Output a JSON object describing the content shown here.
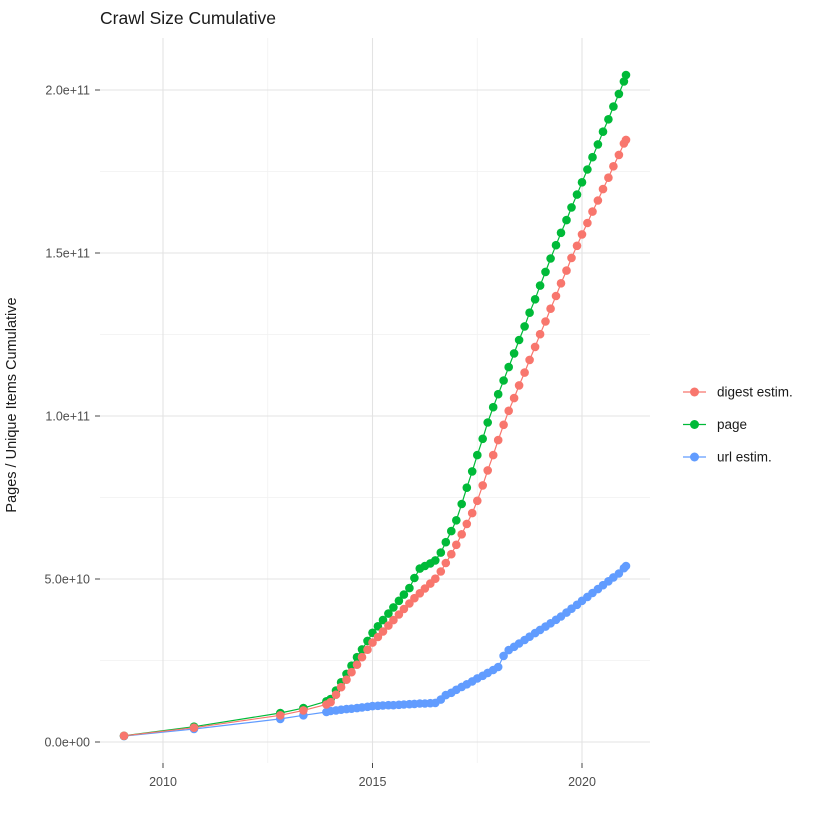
{
  "figure": {
    "title": "Crawl Size Cumulative",
    "ylabel": "Pages / Unique Items Cumulative"
  },
  "colors": {
    "background": "#FFFFFF",
    "grid_major": "#E3E3E3",
    "grid_minor": "#F0F0F0",
    "axis_text": "#4D4D4D",
    "title_text": "#1A1A1A",
    "tick_mark": "#474747"
  },
  "chart_data": {
    "type": "scatter",
    "title": "Crawl Size Cumulative",
    "xlabel": "",
    "ylabel": "Pages / Unique Items Cumulative",
    "value_unit": "cumulative count, stored in billions (1e9); 50 = 5.0e+10",
    "x_range": [
      2008.6,
      2021.6
    ],
    "y_range_e9": [
      0,
      215
    ],
    "grid": true,
    "legend_position": "right",
    "x_ticks": [
      {
        "x": 2010,
        "label": "2010"
      },
      {
        "x": 2015,
        "label": "2015"
      },
      {
        "x": 2020,
        "label": "2020"
      }
    ],
    "y_ticks": [
      {
        "v": 0,
        "label": "0.0e+00"
      },
      {
        "v": 50,
        "label": "5.0e+10"
      },
      {
        "v": 100,
        "label": "1.0e+11"
      },
      {
        "v": 150,
        "label": "1.5e+11"
      },
      {
        "v": 200,
        "label": "2.0e+11"
      }
    ],
    "minor_x": [
      2012.5,
      2017.5
    ],
    "minor_y_e9": [
      25,
      75,
      125,
      175
    ],
    "series": [
      {
        "name": "digest estim.",
        "key": "digest-estim",
        "color": "#F8766D",
        "points": [
          [
            2009.07,
            1.9
          ],
          [
            2010.74,
            4.4
          ],
          [
            2012.8,
            8.2
          ],
          [
            2013.35,
            9.7
          ],
          [
            2013.9,
            11.5
          ],
          [
            2014.0,
            12.2
          ],
          [
            2014.13,
            14.5
          ],
          [
            2014.25,
            16.8
          ],
          [
            2014.38,
            19.1
          ],
          [
            2014.5,
            21.4
          ],
          [
            2014.63,
            23.7
          ],
          [
            2014.75,
            26.0
          ],
          [
            2014.88,
            28.3
          ],
          [
            2015.0,
            30.5
          ],
          [
            2015.13,
            32.2
          ],
          [
            2015.25,
            33.9
          ],
          [
            2015.38,
            35.7
          ],
          [
            2015.5,
            37.4
          ],
          [
            2015.63,
            39.1
          ],
          [
            2015.75,
            40.8
          ],
          [
            2015.88,
            42.5
          ],
          [
            2016.0,
            44.1
          ],
          [
            2016.13,
            45.6
          ],
          [
            2016.25,
            47.1
          ],
          [
            2016.38,
            48.6
          ],
          [
            2016.5,
            50.1
          ],
          [
            2016.63,
            52.3
          ],
          [
            2016.75,
            54.9
          ],
          [
            2016.88,
            57.6
          ],
          [
            2017.0,
            60.5
          ],
          [
            2017.13,
            63.7
          ],
          [
            2017.25,
            66.9
          ],
          [
            2017.38,
            70.2
          ],
          [
            2017.5,
            74.0
          ],
          [
            2017.63,
            78.7
          ],
          [
            2017.75,
            83.3
          ],
          [
            2017.88,
            88.0
          ],
          [
            2018.0,
            92.6
          ],
          [
            2018.13,
            97.3
          ],
          [
            2018.25,
            101.6
          ],
          [
            2018.38,
            105.5
          ],
          [
            2018.5,
            109.4
          ],
          [
            2018.63,
            113.3
          ],
          [
            2018.75,
            117.2
          ],
          [
            2018.88,
            121.2
          ],
          [
            2019.0,
            125.1
          ],
          [
            2019.13,
            129.0
          ],
          [
            2019.25,
            132.9
          ],
          [
            2019.38,
            136.8
          ],
          [
            2019.5,
            140.7
          ],
          [
            2019.63,
            144.6
          ],
          [
            2019.75,
            148.5
          ],
          [
            2019.88,
            152.2
          ],
          [
            2020.0,
            155.7
          ],
          [
            2020.13,
            159.2
          ],
          [
            2020.25,
            162.7
          ],
          [
            2020.38,
            166.1
          ],
          [
            2020.5,
            169.6
          ],
          [
            2020.63,
            173.1
          ],
          [
            2020.75,
            176.6
          ],
          [
            2020.88,
            180.1
          ],
          [
            2021.0,
            183.6
          ],
          [
            2021.05,
            184.7
          ]
        ]
      },
      {
        "name": "page",
        "key": "page",
        "color": "#00BA38",
        "points": [
          [
            2009.07,
            1.9
          ],
          [
            2010.74,
            4.7
          ],
          [
            2012.8,
            8.9
          ],
          [
            2013.35,
            10.4
          ],
          [
            2013.9,
            12.5
          ],
          [
            2014.0,
            13.2
          ],
          [
            2014.13,
            15.8
          ],
          [
            2014.25,
            18.3
          ],
          [
            2014.38,
            20.9
          ],
          [
            2014.5,
            23.4
          ],
          [
            2014.63,
            26.0
          ],
          [
            2014.75,
            28.4
          ],
          [
            2014.88,
            31.0
          ],
          [
            2015.0,
            33.5
          ],
          [
            2015.13,
            35.5
          ],
          [
            2015.25,
            37.4
          ],
          [
            2015.38,
            39.4
          ],
          [
            2015.5,
            41.3
          ],
          [
            2015.63,
            43.3
          ],
          [
            2015.75,
            45.2
          ],
          [
            2015.88,
            47.2
          ],
          [
            2016.0,
            50.3
          ],
          [
            2016.13,
            53.2
          ],
          [
            2016.25,
            54.0
          ],
          [
            2016.38,
            54.8
          ],
          [
            2016.5,
            55.7
          ],
          [
            2016.63,
            58.1
          ],
          [
            2016.75,
            61.3
          ],
          [
            2016.88,
            64.7
          ],
          [
            2017.0,
            68.0
          ],
          [
            2017.13,
            73.0
          ],
          [
            2017.25,
            78.0
          ],
          [
            2017.38,
            83.0
          ],
          [
            2017.5,
            88.0
          ],
          [
            2017.63,
            93.0
          ],
          [
            2017.75,
            98.0
          ],
          [
            2017.88,
            102.7
          ],
          [
            2018.0,
            106.7
          ],
          [
            2018.13,
            110.9
          ],
          [
            2018.25,
            115.0
          ],
          [
            2018.38,
            119.2
          ],
          [
            2018.5,
            123.3
          ],
          [
            2018.63,
            127.5
          ],
          [
            2018.75,
            131.7
          ],
          [
            2018.88,
            135.8
          ],
          [
            2019.0,
            140.0
          ],
          [
            2019.13,
            144.2
          ],
          [
            2019.25,
            148.3
          ],
          [
            2019.38,
            152.4
          ],
          [
            2019.5,
            156.2
          ],
          [
            2019.63,
            160.1
          ],
          [
            2019.75,
            164.0
          ],
          [
            2019.88,
            167.9
          ],
          [
            2020.0,
            171.7
          ],
          [
            2020.13,
            175.6
          ],
          [
            2020.25,
            179.4
          ],
          [
            2020.38,
            183.3
          ],
          [
            2020.5,
            187.2
          ],
          [
            2020.63,
            191.0
          ],
          [
            2020.75,
            194.9
          ],
          [
            2020.88,
            198.8
          ],
          [
            2021.0,
            202.6
          ],
          [
            2021.05,
            204.6
          ]
        ]
      },
      {
        "name": "url estim.",
        "key": "url-estim",
        "color": "#619CFF",
        "points": [
          [
            2009.07,
            1.8
          ],
          [
            2010.74,
            4.0
          ],
          [
            2012.8,
            7.1
          ],
          [
            2013.35,
            8.2
          ],
          [
            2013.9,
            9.2
          ],
          [
            2014.0,
            9.5
          ],
          [
            2014.13,
            9.7
          ],
          [
            2014.25,
            9.9
          ],
          [
            2014.38,
            10.1
          ],
          [
            2014.5,
            10.2
          ],
          [
            2014.63,
            10.4
          ],
          [
            2014.75,
            10.6
          ],
          [
            2014.88,
            10.8
          ],
          [
            2015.0,
            11.0
          ],
          [
            2015.13,
            11.1
          ],
          [
            2015.25,
            11.2
          ],
          [
            2015.38,
            11.3
          ],
          [
            2015.5,
            11.3
          ],
          [
            2015.63,
            11.4
          ],
          [
            2015.75,
            11.5
          ],
          [
            2015.88,
            11.6
          ],
          [
            2016.0,
            11.7
          ],
          [
            2016.13,
            11.8
          ],
          [
            2016.25,
            11.8
          ],
          [
            2016.38,
            11.9
          ],
          [
            2016.5,
            12.0
          ],
          [
            2016.63,
            13.0
          ],
          [
            2016.75,
            14.4
          ],
          [
            2016.88,
            15.1
          ],
          [
            2017.0,
            16.0
          ],
          [
            2017.13,
            16.9
          ],
          [
            2017.25,
            17.7
          ],
          [
            2017.38,
            18.6
          ],
          [
            2017.5,
            19.5
          ],
          [
            2017.63,
            20.3
          ],
          [
            2017.75,
            21.2
          ],
          [
            2017.88,
            22.1
          ],
          [
            2018.0,
            23.0
          ],
          [
            2018.13,
            26.4
          ],
          [
            2018.25,
            28.2
          ],
          [
            2018.38,
            29.2
          ],
          [
            2018.5,
            30.2
          ],
          [
            2018.63,
            31.3
          ],
          [
            2018.75,
            32.3
          ],
          [
            2018.88,
            33.4
          ],
          [
            2019.0,
            34.4
          ],
          [
            2019.13,
            35.4
          ],
          [
            2019.25,
            36.4
          ],
          [
            2019.38,
            37.5
          ],
          [
            2019.5,
            38.5
          ],
          [
            2019.63,
            39.7
          ],
          [
            2019.75,
            40.9
          ],
          [
            2019.88,
            42.1
          ],
          [
            2020.0,
            43.3
          ],
          [
            2020.13,
            44.5
          ],
          [
            2020.25,
            45.7
          ],
          [
            2020.38,
            46.9
          ],
          [
            2020.5,
            48.1
          ],
          [
            2020.63,
            49.3
          ],
          [
            2020.75,
            50.5
          ],
          [
            2020.88,
            51.7
          ],
          [
            2021.0,
            53.3
          ],
          [
            2021.05,
            54.0
          ]
        ]
      }
    ],
    "draw_order": [
      2,
      1,
      0
    ]
  }
}
